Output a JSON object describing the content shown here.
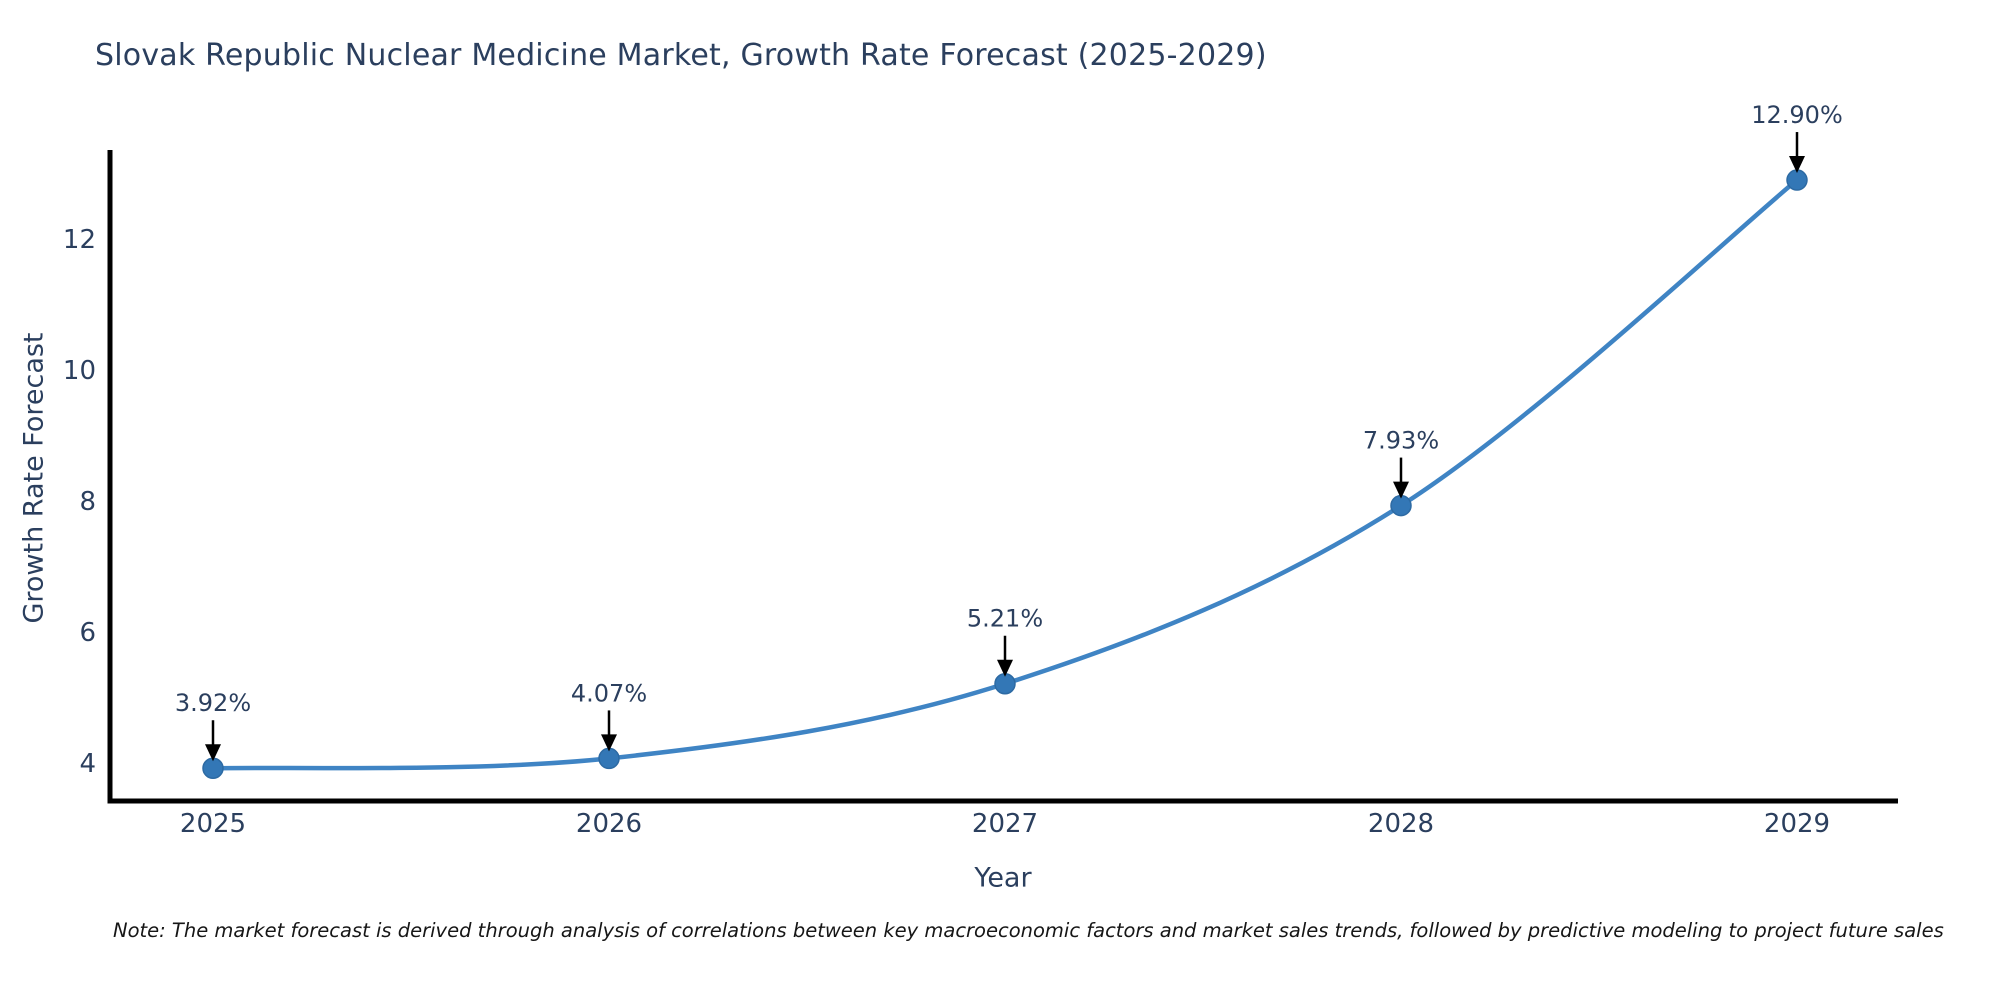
{
  "chart_data": {
    "type": "line",
    "title": "Slovak Republic Nuclear Medicine Market, Growth Rate Forecast (2025-2029)",
    "xlabel": "Year",
    "ylabel": "Growth Rate Forecast",
    "note": "Note: The market forecast is derived through analysis of correlations between key macroeconomic factors and market sales trends, followed by predictive modeling to project future sales",
    "x": [
      2025,
      2026,
      2027,
      2028,
      2029
    ],
    "values": [
      3.92,
      4.07,
      5.21,
      7.93,
      12.9
    ],
    "point_labels": [
      "3.92%",
      "4.07%",
      "5.21%",
      "7.93%",
      "12.90%"
    ],
    "xticklabels": [
      "2025",
      "2026",
      "2027",
      "2028",
      "2029"
    ],
    "yticks": [
      4,
      6,
      8,
      10,
      12
    ],
    "ylim": [
      3.4,
      13.3
    ],
    "grid": false,
    "legend": null,
    "line_shape": "spline",
    "colors": {
      "line": "#3f84c4",
      "marker": "#3377b6",
      "marker_edge": "#2d6aa3",
      "axis": "#000000",
      "text": "#2b3f5e",
      "annotation_text": "#2b3f5e",
      "annotation_arrow": "#000000",
      "background": "#ffffff"
    }
  }
}
